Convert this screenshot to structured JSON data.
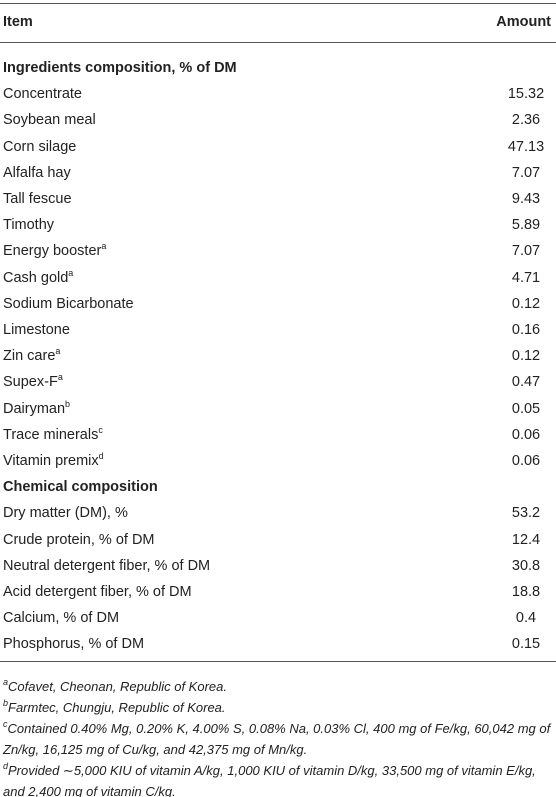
{
  "table": {
    "columns": [
      "Item",
      "Amount"
    ],
    "sections": [
      {
        "title": "Ingredients composition, % of DM",
        "rows": [
          {
            "item": "Concentrate",
            "amount": "15.32"
          },
          {
            "item": "Soybean meal",
            "amount": "2.36"
          },
          {
            "item": "Corn silage",
            "amount": "47.13"
          },
          {
            "item": "Alfalfa hay",
            "amount": "7.07"
          },
          {
            "item": "Tall fescue",
            "amount": "9.43"
          },
          {
            "item": "Timothy",
            "amount": "5.89"
          },
          {
            "item": "Energy booster",
            "note": "a",
            "amount": "7.07"
          },
          {
            "item": "Cash gold",
            "note": "a",
            "amount": "4.71"
          },
          {
            "item": "Sodium Bicarbonate",
            "amount": "0.12"
          },
          {
            "item": "Limestone",
            "amount": "0.16"
          },
          {
            "item": "Zin care",
            "note": "a",
            "amount": "0.12"
          },
          {
            "item": "Supex-F",
            "note": "a",
            "amount": "0.47"
          },
          {
            "item": "Dairyman",
            "note": "b",
            "amount": "0.05"
          },
          {
            "item": "Trace minerals",
            "note": "c",
            "amount": "0.06"
          },
          {
            "item": "Vitamin premix",
            "note": "d",
            "amount": "0.06"
          }
        ]
      },
      {
        "title": "Chemical composition",
        "rows": [
          {
            "item": "Dry matter (DM), %",
            "amount": "53.2"
          },
          {
            "item": "Crude protein, % of DM",
            "amount": "12.4"
          },
          {
            "item": "Neutral detergent fiber, % of DM",
            "amount": "30.8"
          },
          {
            "item": "Acid detergent fiber, % of DM",
            "amount": "18.8"
          },
          {
            "item": "Calcium, % of DM",
            "amount": "0.4"
          },
          {
            "item": "Phosphorus, % of DM",
            "amount": "0.15"
          }
        ]
      }
    ]
  },
  "footnotes": [
    {
      "mark": "a",
      "text": "Cofavet, Cheonan, Republic of Korea."
    },
    {
      "mark": "b",
      "text": "Farmtec, Chungju, Republic of Korea."
    },
    {
      "mark": "c",
      "text": "Contained 0.40% Mg, 0.20% K, 4.00% S, 0.08% Na, 0.03% Cl, 400 mg of Fe/kg, 60,042 mg of Zn/kg, 16,125 mg of Cu/kg, and 42,375 mg of Mn/kg."
    },
    {
      "mark": "d",
      "text": "Provided ∼5,000 KIU of vitamin A/kg, 1,000 KIU of vitamin D/kg, 33,500 mg of vitamin E/kg, and 2,400 mg of vitamin C/kg."
    }
  ]
}
